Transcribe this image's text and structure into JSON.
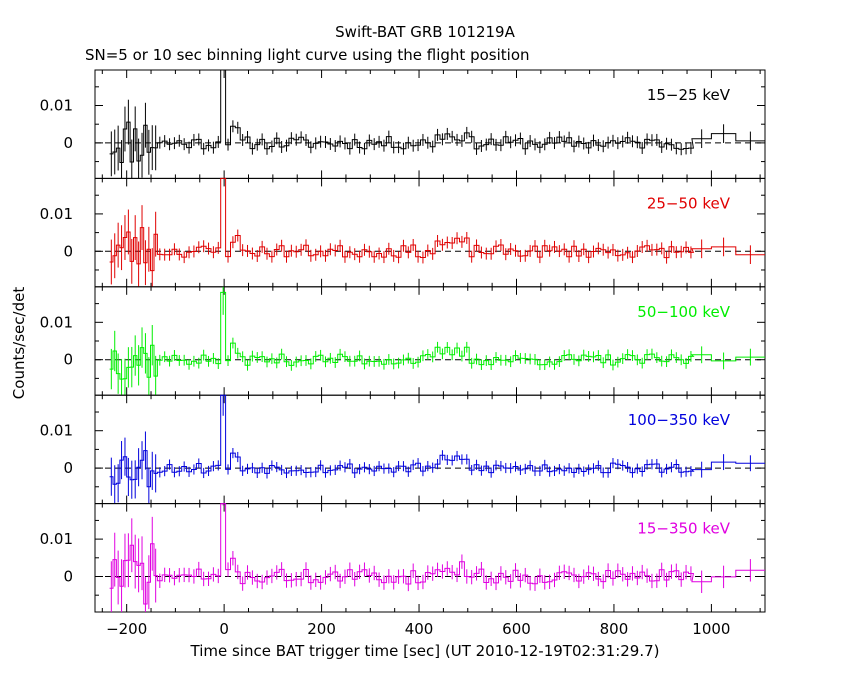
{
  "title": "Swift-BAT GRB 101219A",
  "subtitle": "SN=5 or 10 sec binning light curve using the flight position",
  "colors": {
    "frame": "#000000",
    "background": "#ffffff"
  },
  "chart_data": {
    "type": "line",
    "xlabel": "Time since BAT trigger time [sec] (UT 2010-12-19T02:31:29.7)",
    "ylabel": "Counts/sec/det",
    "xlim": [
      -265,
      1110
    ],
    "ylim": [
      -0.0095,
      0.0195
    ],
    "x_ticks": [
      -200,
      0,
      200,
      400,
      600,
      800,
      1000
    ],
    "x_tick_labels": [
      "−200",
      "0",
      "200",
      "400",
      "600",
      "800",
      "1000"
    ],
    "y_ticks": [
      0,
      0.01
    ],
    "y_tick_labels": [
      "0",
      "0.01"
    ],
    "zero_line": "dashed",
    "grid": false,
    "panels": [
      {
        "name": "15−25 keV",
        "color": "#000000",
        "seed": 11,
        "burst": 0.03,
        "noise_scale": 1.0
      },
      {
        "name": "25−50 keV",
        "color": "#e00000",
        "seed": 23,
        "burst": 0.028,
        "noise_scale": 1.0
      },
      {
        "name": "50−100 keV",
        "color": "#00ee00",
        "seed": 37,
        "burst": 0.018,
        "noise_scale": 0.9
      },
      {
        "name": "100−350 keV",
        "color": "#0000dd",
        "seed": 53,
        "burst": 0.02,
        "noise_scale": 0.85
      },
      {
        "name": "15−350 keV",
        "color": "#e000e0",
        "seed": 71,
        "burst": 0.025,
        "noise_scale": 1.2
      }
    ]
  }
}
